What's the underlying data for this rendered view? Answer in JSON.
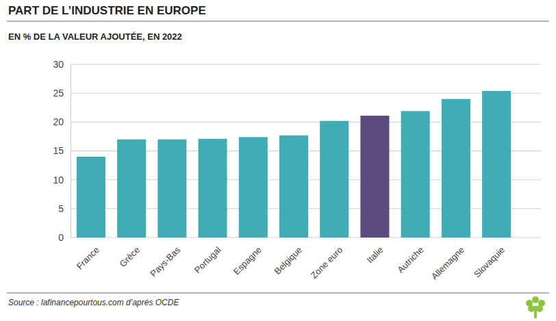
{
  "chart_data": {
    "type": "bar",
    "title": "PART DE L’INDUSTRIE EN EUROPE",
    "subtitle": "EN % DE LA VALEUR AJOUTÉE, EN 2022",
    "source": "Source : lafinancepourtous.com d’aprés OCDE",
    "categories": [
      "France",
      "Grèce",
      "Pays-Bas",
      "Portugal",
      "Espagne",
      "Belgique",
      "Zone euro",
      "Italie",
      "Autriche",
      "Allemagne",
      "Slovaquie"
    ],
    "values": [
      14,
      17,
      17,
      17.1,
      17.4,
      17.7,
      20.2,
      21.1,
      21.9,
      24,
      25.4
    ],
    "colors": [
      "#40adb5",
      "#40adb5",
      "#40adb5",
      "#40adb5",
      "#40adb5",
      "#40adb5",
      "#40adb5",
      "#5b4a7c",
      "#40adb5",
      "#40adb5",
      "#40adb5"
    ],
    "ylim": [
      0,
      30
    ],
    "yticks": [
      0,
      5,
      10,
      15,
      20,
      25,
      30
    ],
    "grid": true
  }
}
